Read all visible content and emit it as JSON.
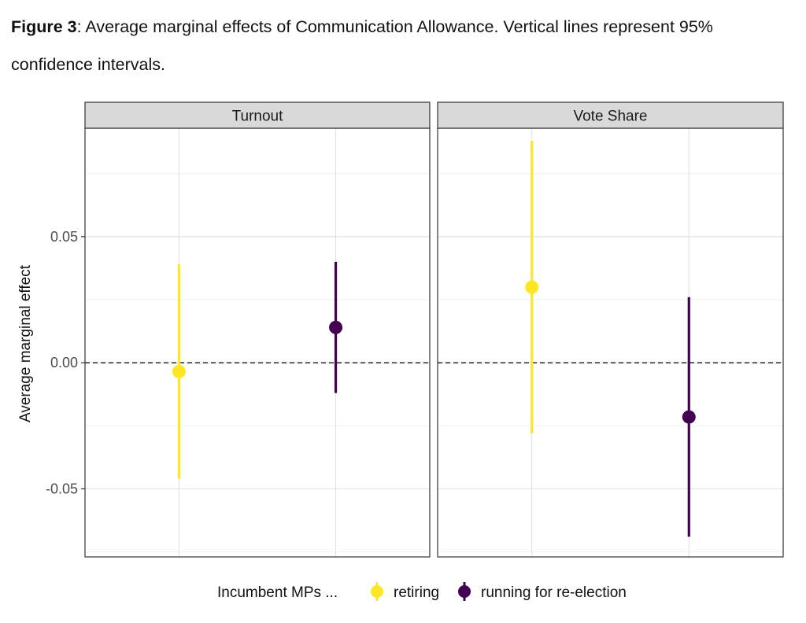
{
  "caption": {
    "label": "Figure 3",
    "text": ": Average marginal effects of Communication Allowance. Vertical lines represent 95% confidence intervals."
  },
  "chart_data": {
    "type": "scatter",
    "title": "",
    "xlabel": "",
    "ylabel": "Average marginal effect",
    "ylim": [
      -0.077,
      0.093
    ],
    "yticks": [
      -0.05,
      0.0,
      0.05
    ],
    "ytick_labels": [
      "-0.05",
      "0.00",
      "0.05"
    ],
    "reference_line": {
      "y": 0,
      "style": "dashed"
    },
    "grid": true,
    "legend": {
      "title": "Incumbent MPs ...",
      "position": "bottom",
      "entries": [
        {
          "name": "retiring",
          "color": "#FDE725"
        },
        {
          "name": "running for re-election",
          "color": "#440154"
        }
      ]
    },
    "facets": [
      {
        "name": "Turnout",
        "points": [
          {
            "series": "retiring",
            "estimate": -0.0035,
            "lower": -0.046,
            "upper": 0.039
          },
          {
            "series": "running for re-election",
            "estimate": 0.014,
            "lower": -0.012,
            "upper": 0.04
          }
        ]
      },
      {
        "name": "Vote Share",
        "points": [
          {
            "series": "retiring",
            "estimate": 0.03,
            "lower": -0.028,
            "upper": 0.088
          },
          {
            "series": "running for re-election",
            "estimate": -0.0215,
            "lower": -0.069,
            "upper": 0.026
          }
        ]
      }
    ]
  }
}
